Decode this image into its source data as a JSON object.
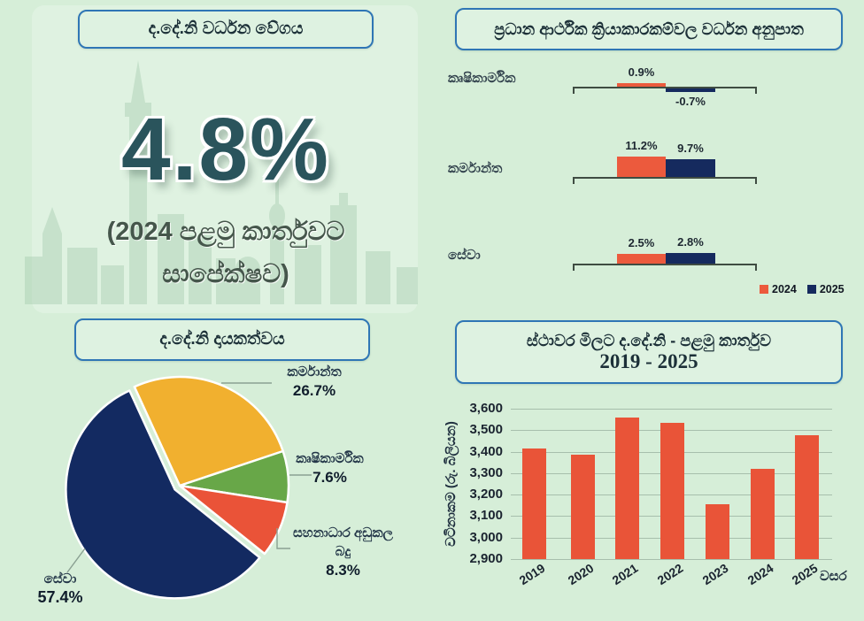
{
  "growth": {
    "title": "ද.දේ.නි වර්ධන වේගය",
    "value": "4.8%",
    "caption_line1": "(2024 පළමු කාර්තුවට",
    "caption_line2": "සාපේක්ෂව)"
  },
  "activity": {
    "title": "ප්‍රධාන ආර්ථික ක්‍රියාකාරකම්වල වර්ධන අනුපාත"
  },
  "contribution": {
    "title": "ද.දේ.නි දායකත්වය",
    "labels": {
      "industry": "කර්මාන්ත",
      "industry_pct": "26.7%",
      "agriculture": "කෘෂිකාර්මික",
      "agriculture_pct": "7.6%",
      "subsidy_line1": "සහනාධාර අඩුකල",
      "subsidy_line2": "බදු",
      "subsidy_pct": "8.3%",
      "services": "සේවා",
      "services_pct": "57.4%"
    }
  },
  "gdp": {
    "title_line1": "ස්ථාවර මිලට ද.දේ.නි - පළමු කාර්තුව",
    "title_line2": "2019 - 2025",
    "ylabel": "වටිනාකම (රු. බිලියන)",
    "xlabel": "වසර"
  },
  "colors": {
    "background": "#d6eed8",
    "box_border_blue": "#2f76b5",
    "orange_2024": "#ec5a3d",
    "navy_2025": "#152a5e",
    "pie_yellow": "#f1b02f",
    "pie_green": "#68a748",
    "pie_red": "#ea5338",
    "pie_navy": "#132a61",
    "gdp_bar": "#e95438",
    "big_value_teal": "#2a545c"
  },
  "chart_data": [
    {
      "type": "bar",
      "title": "ප්‍රධාන ආර්ථික ක්‍රියාකාරකම්වල වර්ධන අනුපාත",
      "categories": [
        "කෘෂිකාර්මික",
        "කර්මාන්ත",
        "සේවා"
      ],
      "series": [
        {
          "name": "2024",
          "color": "#ec5a3d",
          "values": [
            0.9,
            11.2,
            2.5
          ]
        },
        {
          "name": "2025",
          "color": "#152a5e",
          "values": [
            -0.7,
            9.7,
            2.8
          ]
        }
      ],
      "value_labels": [
        [
          "0.9%",
          "-0.7%"
        ],
        [
          "11.2%",
          "9.7%"
        ],
        [
          "2.5%",
          "2.8%"
        ]
      ],
      "legend_position": "bottom-right",
      "grid": false
    },
    {
      "type": "pie",
      "title": "ද.දේ.නි දායකත්වය",
      "start_angle_deg": -24.6,
      "slices": [
        {
          "label": "කර්මාන්ත",
          "value": 26.7,
          "pct_label": "26.7%",
          "color": "#f1b02f"
        },
        {
          "label": "කෘෂිකාර්මික",
          "value": 7.6,
          "pct_label": "7.6%",
          "color": "#68a748"
        },
        {
          "label": "සහනාධාර අඩුකල බදු",
          "value": 8.3,
          "pct_label": "8.3%",
          "color": "#ea5338"
        },
        {
          "label": "සේවා",
          "value": 57.4,
          "pct_label": "57.4%",
          "color": "#132a61",
          "exploded": true
        }
      ]
    },
    {
      "type": "bar",
      "title": "ස්ථාවර මිලට ද.දේ.නි - පළමු කාර්තුව 2019 - 2025",
      "categories": [
        "2019",
        "2020",
        "2021",
        "2022",
        "2023",
        "2024",
        "2025"
      ],
      "values": [
        3415,
        3385,
        3560,
        3535,
        3155,
        3320,
        3475
      ],
      "bar_color": "#e95438",
      "ylabel": "වටිනාකම (රු. බිලියන)",
      "xlabel": "වසර",
      "ylim": [
        2900,
        3600
      ],
      "ytick_labels": [
        "2,900",
        "3,000",
        "3,100",
        "3,200",
        "3,300",
        "3,400",
        "3,500",
        "3,600"
      ],
      "grid": true,
      "legend_position": "none"
    }
  ]
}
